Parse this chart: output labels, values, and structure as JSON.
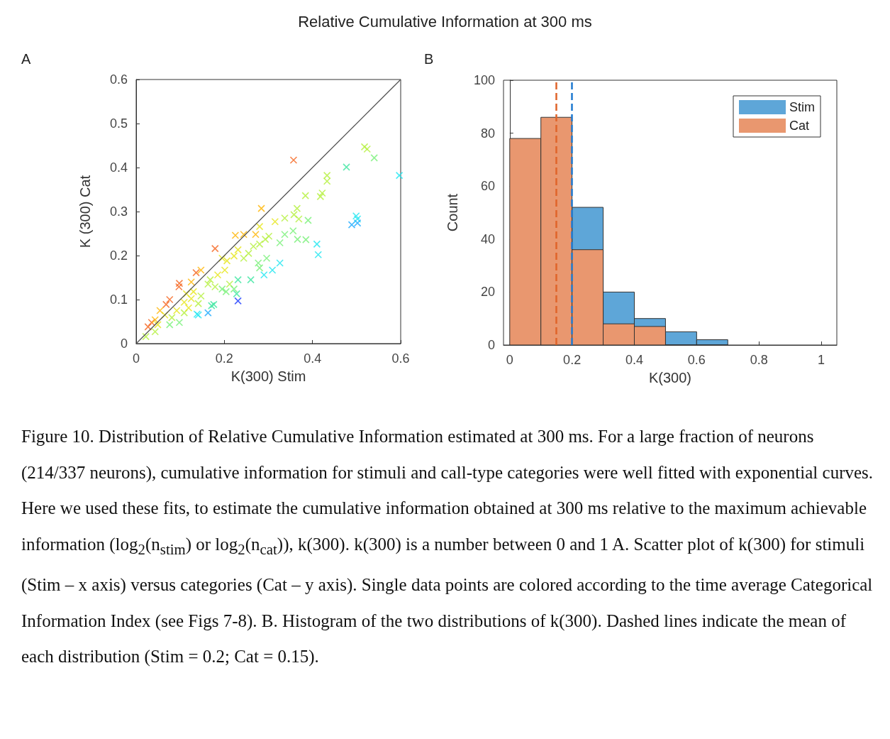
{
  "chart_data": [
    {
      "type": "scatter",
      "title": "Relative Cumulative Information at 300 ms",
      "xlabel": "K(300) Stim",
      "ylabel": "K (300) Cat",
      "annotations": [
        "A"
      ],
      "xlim": [
        0,
        0.6
      ],
      "xticks": [
        0,
        0.2,
        0.4,
        0.6
      ],
      "ylim": [
        0,
        0.6
      ],
      "yticks": [
        0,
        0.1,
        0.2,
        0.3,
        0.4,
        0.5,
        0.6
      ],
      "grid": false,
      "legend": false,
      "marker": "cross",
      "series": [
        {
          "x": [
            0.357,
            0.518,
            0.524,
            0.54,
            0.477,
            0.597,
            0.433,
            0.433,
            0.384,
            0.422,
            0.418,
            0.284,
            0.365,
            0.358,
            0.369,
            0.337,
            0.315,
            0.39,
            0.28,
            0.271,
            0.225,
            0.244,
            0.301,
            0.293,
            0.337,
            0.356,
            0.326,
            0.366,
            0.385,
            0.41,
            0.413,
            0.489,
            0.502,
            0.499,
            0.502,
            0.179,
            0.231,
            0.266,
            0.28,
            0.195,
            0.206,
            0.222,
            0.244,
            0.255,
            0.136,
            0.147,
            0.326,
            0.309,
            0.29,
            0.28,
            0.296,
            0.277,
            0.26,
            0.231,
            0.201,
            0.185,
            0.168,
            0.163,
            0.179,
            0.212,
            0.195,
            0.222,
            0.204,
            0.228,
            0.231,
            0.098,
            0.097,
            0.125,
            0.13,
            0.114,
            0.147,
            0.125,
            0.109,
            0.141,
            0.068,
            0.076,
            0.171,
            0.176,
            0.163,
            0.138,
            0.141,
            0.092,
            0.081,
            0.098,
            0.076,
            0.054,
            0.065,
            0.027,
            0.035,
            0.043,
            0.022,
            0.043,
            0.049,
            0.109,
            0.119
          ],
          "values": [
            0.417,
            0.447,
            0.442,
            0.422,
            0.401,
            0.382,
            0.382,
            0.369,
            0.336,
            0.342,
            0.334,
            0.307,
            0.307,
            0.293,
            0.283,
            0.285,
            0.277,
            0.28,
            0.266,
            0.248,
            0.246,
            0.248,
            0.244,
            0.237,
            0.248,
            0.256,
            0.229,
            0.237,
            0.236,
            0.226,
            0.202,
            0.27,
            0.283,
            0.29,
            0.274,
            0.216,
            0.213,
            0.221,
            0.226,
            0.194,
            0.188,
            0.199,
            0.194,
            0.205,
            0.161,
            0.167,
            0.183,
            0.167,
            0.156,
            0.172,
            0.194,
            0.183,
            0.145,
            0.145,
            0.167,
            0.156,
            0.145,
            0.135,
            0.129,
            0.135,
            0.124,
            0.124,
            0.118,
            0.113,
            0.097,
            0.137,
            0.129,
            0.14,
            0.118,
            0.113,
            0.108,
            0.102,
            0.094,
            0.091,
            0.089,
            0.1,
            0.086,
            0.089,
            0.07,
            0.067,
            0.065,
            0.075,
            0.059,
            0.048,
            0.043,
            0.075,
            0.065,
            0.038,
            0.048,
            0.054,
            0.016,
            0.027,
            0.043,
            0.07,
            0.081
          ],
          "colors": [
            "#f5641e",
            "#b4f03c",
            "#b4f03c",
            "#78f078",
            "#3ce6a0",
            "#1ee6f0",
            "#b4f03c",
            "#b4f03c",
            "#b4f03c",
            "#b4f03c",
            "#b4f03c",
            "#ffb400",
            "#b4f03c",
            "#b4f03c",
            "#b4f03c",
            "#b4f03c",
            "#e6e619",
            "#78f078",
            "#e6e619",
            "#ffb400",
            "#ffb400",
            "#ffb400",
            "#b4f03c",
            "#b4f03c",
            "#78f078",
            "#78f078",
            "#78f078",
            "#78f078",
            "#78f078",
            "#1ee6f0",
            "#1ee6f0",
            "#1eaaff",
            "#1ee6f0",
            "#1ee6f0",
            "#1eaaff",
            "#f5641e",
            "#e6e619",
            "#b4f03c",
            "#b4f03c",
            "#e6e619",
            "#e6e619",
            "#e6e619",
            "#b4f03c",
            "#b4f03c",
            "#f5641e",
            "#ffb400",
            "#1ee6f0",
            "#1ee6f0",
            "#1ee6f0",
            "#78f078",
            "#78f078",
            "#78f078",
            "#3ce6a0",
            "#3ce6a0",
            "#e6e619",
            "#e6e619",
            "#b4f03c",
            "#b4f03c",
            "#b4f03c",
            "#b4f03c",
            "#78f078",
            "#78f078",
            "#78f078",
            "#3ce6a0",
            "#1e3cff",
            "#f5641e",
            "#f5641e",
            "#ffb400",
            "#e6e619",
            "#e6e619",
            "#b4f03c",
            "#e6e619",
            "#e6e619",
            "#b4f03c",
            "#f5641e",
            "#f5641e",
            "#3ce6a0",
            "#3ce6a0",
            "#1eaaff",
            "#1ee6f0",
            "#1ee6f0",
            "#e6e619",
            "#b4f03c",
            "#78f078",
            "#78f078",
            "#ffb400",
            "#e6e619",
            "#f5641e",
            "#f5641e",
            "#ffb400",
            "#b4f03c",
            "#b4f03c",
            "#e6e619",
            "#b4f03c",
            "#e6e619"
          ]
        },
        {
          "type": "line",
          "x": [
            0,
            0.6
          ],
          "values": [
            0,
            0.6
          ],
          "color": "#505050",
          "marker": "none"
        }
      ]
    },
    {
      "type": "histogram",
      "xlabel": "K(300)",
      "ylabel": "Count",
      "annotations": [
        "B",
        "Figure 10. Distribution of Relative Cumulative Information estimated at 300 ms. For a large fraction of neurons (214/337 neurons), cumulative information for stimuli and call-type categories were well fitted with exponential curves. Here we used these fits, to estimate the cumulative information obtained at 300 ms relative to the maximum achievable information (log$_{2}$(n$_{stim}$) or log$_{2}$(n$_{cat}$)), k(300). k(300) is a number between 0 and 1 A. Scatter plot of k(300) for stimuli (Stim – x axis) versus categories (Cat – y axis). Single data points are colored according to the time average Categorical Information Index (see Figs 7-8). B. Histogram of the two distributions of k(300). Dashed lines indicate the mean of each distribution (Stim = 0.2; Cat = 0.15)."
      ],
      "bins": [
        0,
        0.1,
        0.2,
        0.3,
        0.4,
        0.5,
        0.6,
        0.7
      ],
      "xlim": [
        -0.02,
        1.05
      ],
      "xticks": [
        0,
        0.2,
        0.4,
        0.6,
        0.8,
        1
      ],
      "ylim": [
        0,
        100
      ],
      "yticks": [
        0,
        20,
        40,
        60,
        80,
        100
      ],
      "grid": false,
      "legend": "top right",
      "series": [
        {
          "name": "Stim",
          "color": "#5ea6d8",
          "values": [
            null,
            null,
            52,
            20,
            10,
            5,
            2
          ]
        },
        {
          "name": "Cat",
          "color": "#e9976f",
          "values": [
            78,
            86,
            36,
            8,
            7,
            0,
            0
          ]
        }
      ],
      "ref_lines": [
        {
          "axis": "x",
          "value": 0.2,
          "color": "#1f7ad0",
          "line_style": "dashed"
        },
        {
          "axis": "x",
          "value": 0.15,
          "color": "#e0642a",
          "line_style": "dashed"
        }
      ]
    }
  ]
}
